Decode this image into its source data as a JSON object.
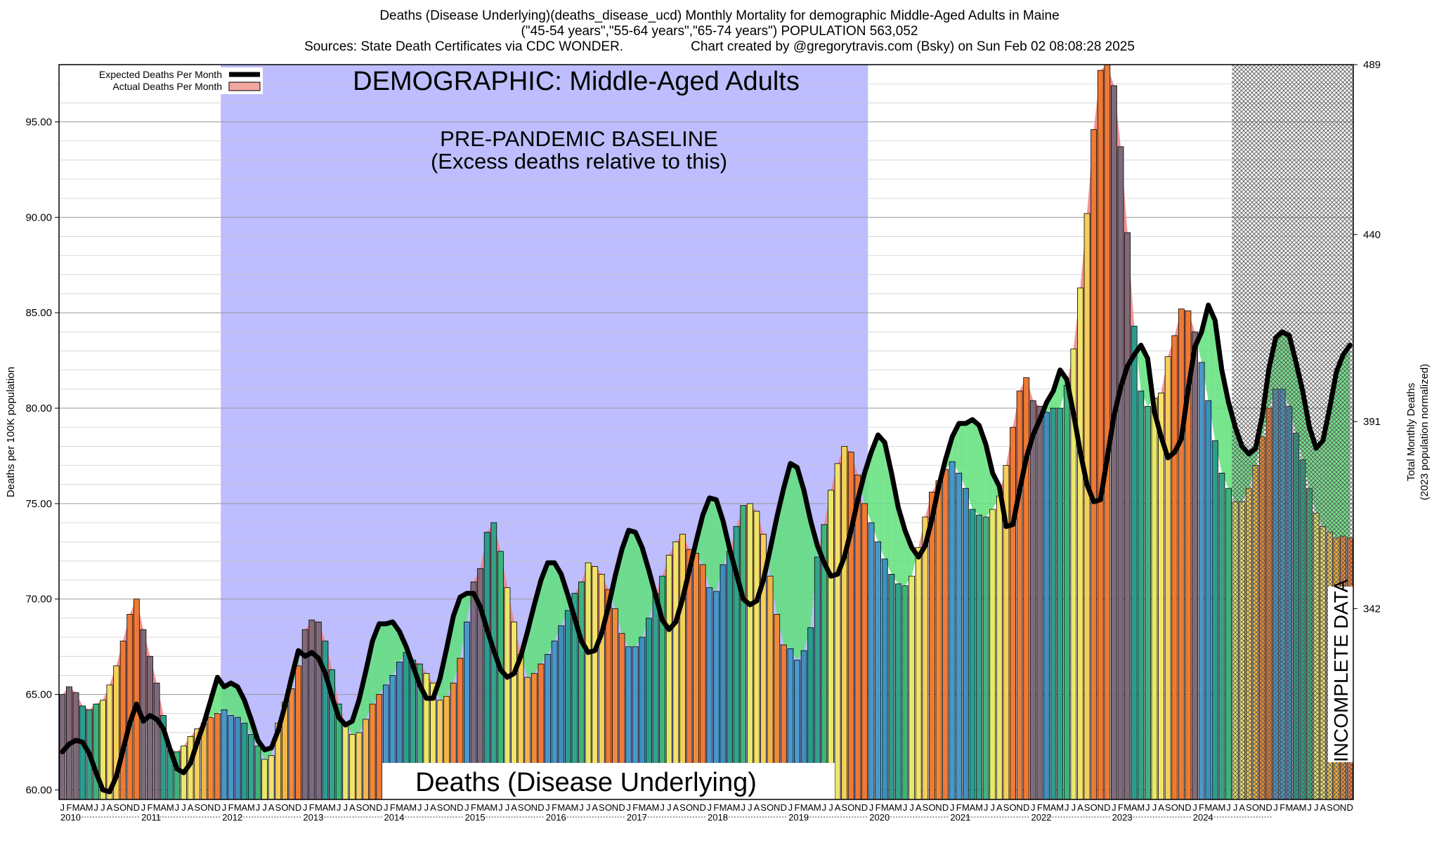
{
  "title": {
    "line1": "Deaths (Disease Underlying)(deaths_disease_ucd) Monthly Mortality for demographic Middle-Aged Adults in Maine",
    "line2": "(\"45-54 years\",\"55-64 years\",\"65-74 years\") POPULATION 563,052",
    "line3_left": "Sources: State Death Certificates via CDC WONDER.",
    "line3_right": "Chart created by @gregorytravis.com (Bsky) on Sun Feb 02 08:08:28 2025"
  },
  "annotations": {
    "demographic": "DEMOGRAPHIC: Middle-Aged Adults",
    "baseline_line1": "PRE-PANDEMIC BASELINE",
    "baseline_line2": "(Excess deaths relative to this)",
    "cause_label": "Deaths (Disease Underlying)",
    "incomplete": "INCOMPLETE DATA"
  },
  "legend": {
    "expected": "Expected Deaths Per Month",
    "actual": "Actual Deaths Per Month"
  },
  "axes": {
    "ylabel_left": "Deaths per 100K population",
    "ylabel_right_line1": "Total Monthly Deaths",
    "ylabel_right_line2": "(2023 population normalized)",
    "y_ticks": [
      "60.00",
      "65.00",
      "70.00",
      "75.00",
      "80.00",
      "85.00",
      "90.00",
      "95.00"
    ],
    "y_right_ticks": [
      "342",
      "391",
      "440",
      "489"
    ],
    "month_letters": [
      "J",
      "F",
      "M",
      "A",
      "M",
      "J",
      "J",
      "A",
      "S",
      "O",
      "N",
      "D"
    ],
    "years": [
      "2010",
      "2011",
      "2012",
      "2013",
      "2014",
      "2015",
      "2016",
      "2017",
      "2018",
      "2019",
      "2020",
      "2021",
      "2022",
      "2023",
      "2024"
    ]
  },
  "colors": {
    "baseline_band": "#bdbdff",
    "excess_fill": "#5fe07a",
    "deficit_fill": "#f08080",
    "expected_line": "#000000",
    "hatch": "#555555"
  },
  "chart_data": {
    "type": "bar",
    "title": "Deaths (Disease Underlying)(deaths_disease_ucd) Monthly Mortality for demographic Middle-Aged Adults in Maine",
    "xlabel": "",
    "ylabel": "Deaths per 100K population",
    "ylim": [
      59.5,
      98
    ],
    "grid": true,
    "legend_position": "top-left",
    "baseline_period": [
      "2012-01",
      "2019-12"
    ],
    "incomplete_from": "2024-07",
    "start": "2010-01",
    "series": [
      {
        "name": "Actual Deaths Per Month",
        "values": [
          65.0,
          65.4,
          65.1,
          64.4,
          64.2,
          64.5,
          64.7,
          65.5,
          66.5,
          67.8,
          69.2,
          70.0,
          68.4,
          67.0,
          65.6,
          63.9,
          62.1,
          62.0,
          62.3,
          62.8,
          63.2,
          63.5,
          63.8,
          64.0,
          64.2,
          63.9,
          63.8,
          63.5,
          62.9,
          62.3,
          61.6,
          61.8,
          63.5,
          64.6,
          65.3,
          66.5,
          68.4,
          68.9,
          68.8,
          67.8,
          66.3,
          64.5,
          63.5,
          62.9,
          63.0,
          63.7,
          64.5,
          65.0,
          65.5,
          66.0,
          66.7,
          67.2,
          66.8,
          66.6,
          66.1,
          65.6,
          64.7,
          64.9,
          65.6,
          66.9,
          68.8,
          70.9,
          71.6,
          73.5,
          74.0,
          72.5,
          70.6,
          68.8,
          67.1,
          65.9,
          66.1,
          66.6,
          67.1,
          67.8,
          68.6,
          69.4,
          70.3,
          70.9,
          71.9,
          71.7,
          71.3,
          70.5,
          69.5,
          68.2,
          67.5,
          67.5,
          68.0,
          69.0,
          70.3,
          71.2,
          72.3,
          73.0,
          73.4,
          72.6,
          72.4,
          71.8,
          70.6,
          70.4,
          71.8,
          72.5,
          73.8,
          74.9,
          75.0,
          74.6,
          73.4,
          71.2,
          69.2,
          67.6,
          67.4,
          66.8,
          67.3,
          68.5,
          72.2,
          73.9,
          75.7,
          77.1,
          78.0,
          77.7,
          76.5,
          75.0,
          74.0,
          73.0,
          72.1,
          71.3,
          70.8,
          70.7,
          71.2,
          72.7,
          74.3,
          75.6,
          76.2,
          76.8,
          77.2,
          76.6,
          75.8,
          74.7,
          74.4,
          74.3,
          74.7,
          75.4,
          77.0,
          79.0,
          80.9,
          81.6,
          80.4,
          80.1,
          79.8,
          80.0,
          80.0,
          81.2,
          83.1,
          86.3,
          90.2,
          94.6,
          97.7,
          98.0,
          96.9,
          93.7,
          89.2,
          84.3,
          80.9,
          80.1,
          80.5,
          80.8,
          82.7,
          83.8,
          85.2,
          85.1,
          84.0,
          82.4,
          80.4,
          78.3,
          76.6,
          75.8,
          75.1,
          75.1,
          75.8,
          77.0,
          78.5,
          80.0,
          81.0,
          81.0,
          80.1,
          78.7,
          77.3,
          75.8,
          74.5,
          73.8,
          73.5,
          73.2,
          73.3,
          73.2
        ]
      },
      {
        "name": "Expected Deaths Per Month",
        "values": [
          62.0,
          62.4,
          62.6,
          62.5,
          61.9,
          60.9,
          60.0,
          59.9,
          60.7,
          62.1,
          63.5,
          64.5,
          63.6,
          63.9,
          63.7,
          63.2,
          62.1,
          61.1,
          60.9,
          61.4,
          62.5,
          63.5,
          64.7,
          65.9,
          65.4,
          65.6,
          65.4,
          64.7,
          63.7,
          62.6,
          62.1,
          62.2,
          63.1,
          64.4,
          65.9,
          67.3,
          67.0,
          67.2,
          66.9,
          66.1,
          64.9,
          63.8,
          63.4,
          63.6,
          64.7,
          66.2,
          67.8,
          68.7,
          68.7,
          68.8,
          68.3,
          67.5,
          66.5,
          65.5,
          64.8,
          64.8,
          65.8,
          67.4,
          69.1,
          70.1,
          70.3,
          70.3,
          69.6,
          68.4,
          67.3,
          66.3,
          65.9,
          66.1,
          67.0,
          68.3,
          69.7,
          71.0,
          71.9,
          71.9,
          71.3,
          70.2,
          69.0,
          67.8,
          67.2,
          67.3,
          68.2,
          69.6,
          71.2,
          72.6,
          73.6,
          73.5,
          72.7,
          71.5,
          70.2,
          68.9,
          68.4,
          68.8,
          70.0,
          71.5,
          73.0,
          74.4,
          75.3,
          75.2,
          74.1,
          72.6,
          71.3,
          70.0,
          69.7,
          69.9,
          71.0,
          72.6,
          74.3,
          75.8,
          77.1,
          76.9,
          75.7,
          74.1,
          72.8,
          71.9,
          71.2,
          71.3,
          72.2,
          73.6,
          75.2,
          76.6,
          77.7,
          78.6,
          78.2,
          76.6,
          74.8,
          73.6,
          72.7,
          72.2,
          72.8,
          74.2,
          75.9,
          77.3,
          78.5,
          79.2,
          79.2,
          79.4,
          79.1,
          78.1,
          76.6,
          75.9,
          73.8,
          73.9,
          75.7,
          77.4,
          78.6,
          79.4,
          80.3,
          80.9,
          82.0,
          81.5,
          79.7,
          77.7,
          76.0,
          75.1,
          75.2,
          77.4,
          79.6,
          81.1,
          82.2,
          82.8,
          83.3,
          82.6,
          79.8,
          78.5,
          77.4,
          77.7,
          78.4,
          81.0,
          83.2,
          84.0,
          85.4,
          84.6,
          82.0,
          80.3,
          79.0,
          78.0,
          77.6,
          77.9,
          79.6,
          82.1,
          83.7,
          84.0,
          83.8,
          82.4,
          80.9,
          79.0,
          77.9,
          78.3,
          80.0,
          81.9,
          82.8,
          83.3
        ]
      }
    ]
  }
}
